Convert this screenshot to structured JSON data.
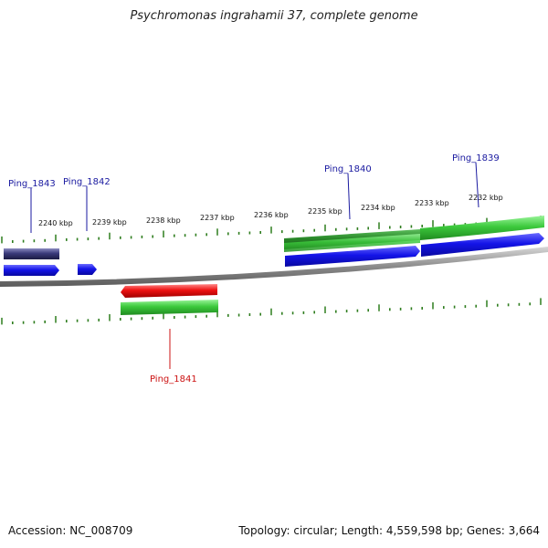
{
  "title": "Psychromonas ingrahamii 37, complete genome",
  "accession_text": "Accession: NC_008709",
  "stats_text": "Topology: circular; Length: 4,559,598 bp; Genes: 3,664",
  "colors": {
    "backbone": "#8a8a8a",
    "tick": "#2e7d1e",
    "gene_blue": "#1010e0",
    "gene_green": "#3cc93c",
    "gene_darkgreen": "#2a8a2a",
    "gene_navy": "#3a3a7a",
    "gene_red": "#ee1111",
    "label_blue": "#1a1aa0",
    "label_red": "#cc1111"
  },
  "kbp_labels": [
    "2240 kbp",
    "2239 kbp",
    "2238 kbp",
    "2237 kbp",
    "2236 kbp",
    "2235 kbp",
    "2234 kbp",
    "2233 kbp",
    "2232 kbp"
  ],
  "genes": [
    {
      "name": "Ping_1843",
      "color": "label_blue"
    },
    {
      "name": "Ping_1842",
      "color": "label_blue"
    },
    {
      "name": "Ping_1841",
      "color": "label_red"
    },
    {
      "name": "Ping_1840",
      "color": "label_blue"
    },
    {
      "name": "Ping_1839",
      "color": "label_blue"
    }
  ]
}
